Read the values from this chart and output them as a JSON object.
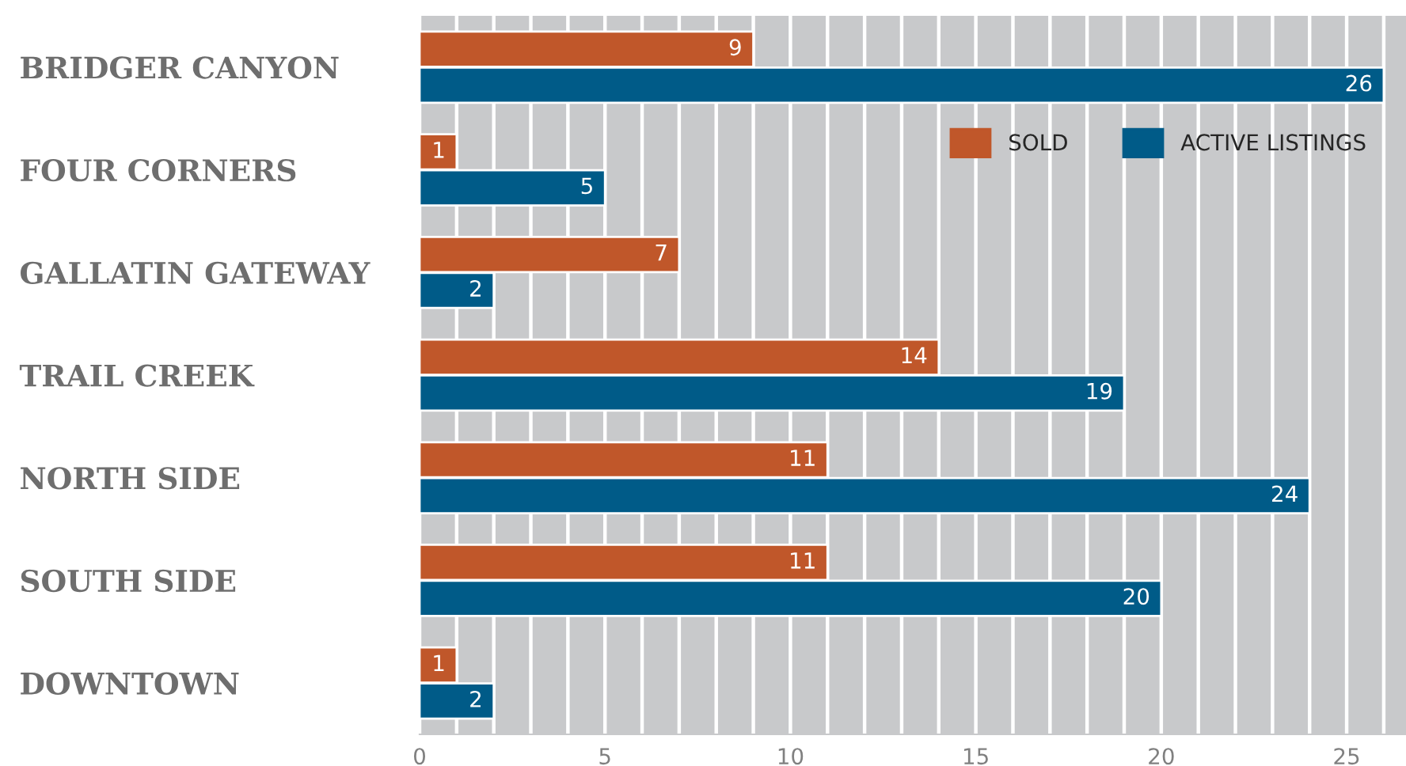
{
  "chart_data": {
    "type": "bar",
    "orientation": "horizontal",
    "categories": [
      "BRIDGER CANYON",
      "FOUR CORNERS",
      "GALLATIN GATEWAY",
      "TRAIL CREEK",
      "NORTH SIDE",
      "SOUTH SIDE",
      "DOWNTOWN"
    ],
    "series": [
      {
        "name": "SOLD",
        "color": "#c0572a",
        "values": [
          9,
          1,
          7,
          14,
          11,
          11,
          1
        ]
      },
      {
        "name": "ACTIVE LISTINGS",
        "color": "#005b88",
        "values": [
          26,
          5,
          2,
          19,
          24,
          20,
          2
        ]
      }
    ],
    "xlim": [
      0,
      26.6
    ],
    "xticks": [
      0,
      {
        "value": 1,
        "label": null
      },
      {
        "value": 2,
        "label": null
      },
      {
        "value": 3,
        "label": null
      },
      {
        "value": 4,
        "label": null
      },
      5,
      {
        "value": 6,
        "label": null
      },
      {
        "value": 7,
        "label": null
      },
      {
        "value": 8,
        "label": null
      },
      {
        "value": 9,
        "label": null
      },
      10,
      {
        "value": 11,
        "label": null
      },
      {
        "value": 12,
        "label": null
      },
      {
        "value": 13,
        "label": null
      },
      {
        "value": 14,
        "label": null
      },
      15,
      {
        "value": 16,
        "label": null
      },
      {
        "value": 17,
        "label": null
      },
      {
        "value": 18,
        "label": null
      },
      {
        "value": 19,
        "label": null
      },
      20,
      {
        "value": 21,
        "label": null
      },
      {
        "value": 22,
        "label": null
      },
      {
        "value": 23,
        "label": null
      },
      {
        "value": 24,
        "label": null
      },
      25,
      {
        "value": 26,
        "label": null
      }
    ],
    "grid": "x",
    "legend": "top right",
    "data_labels": true
  }
}
